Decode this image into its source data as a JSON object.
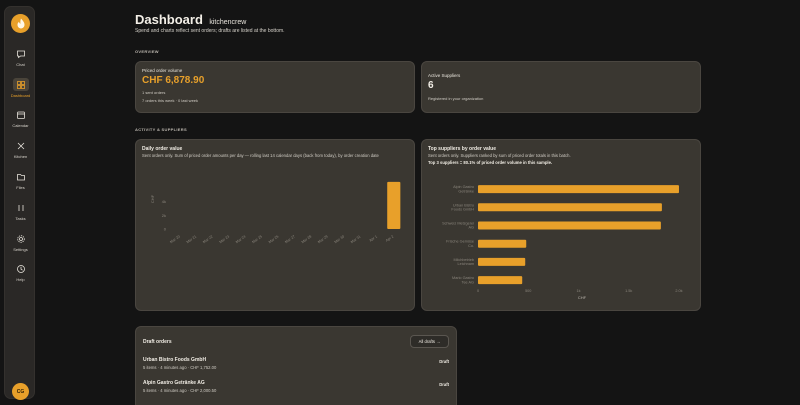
{
  "colors": {
    "accent": "#e8a02a",
    "background": "#141414",
    "card": "#3a3731",
    "sidebar": "#2a2826"
  },
  "sidebar": {
    "items": [
      {
        "label": "Chat",
        "icon": "chat-icon"
      },
      {
        "label": "Dashboard",
        "icon": "dashboard-icon",
        "active": true
      },
      {
        "label": "Calendar",
        "icon": "calendar-icon"
      },
      {
        "label": "Kitchen",
        "icon": "kitchen-icon"
      },
      {
        "label": "Files",
        "icon": "folder-icon"
      },
      {
        "label": "Tasks",
        "icon": "tasks-icon"
      },
      {
        "label": "Settings",
        "icon": "gear-icon"
      },
      {
        "label": "Help",
        "icon": "help-icon"
      }
    ],
    "avatar": "CG"
  },
  "header": {
    "title": "Dashboard",
    "org": "kitchencrew",
    "subtitle": "Spend and charts reflect sent orders; drafts are listed at the bottom."
  },
  "sections": {
    "overview": "OVERVIEW",
    "activity": "ACTIVITY & SUPPLIERS"
  },
  "kpis": {
    "priced": {
      "label": "Priced order volume",
      "value": "CHF 6,878.90",
      "note1": "1 sent orders",
      "note2": "7 orders this week · 0 last week"
    },
    "suppliers": {
      "label": "Active Suppliers",
      "value": "6",
      "note": "Registered in your organization"
    }
  },
  "daily_chart": {
    "title": "Daily order value",
    "description": "Sent orders only. Sum of priced order amounts per day — rolling last 14 calendar days (back from today), by order creation date",
    "ylabel": "CHF",
    "chart_data": {
      "type": "bar",
      "categories": [
        "Mar 20",
        "Mar 21",
        "Mar 22",
        "Mar 23",
        "Mar 24",
        "Mar 25",
        "Mar 26",
        "Mar 27",
        "Mar 28",
        "Mar 29",
        "Mar 30",
        "Mar 31",
        "Apr 1",
        "Apr 2"
      ],
      "values": [
        0,
        0,
        0,
        0,
        0,
        0,
        0,
        0,
        0,
        0,
        0,
        0,
        0,
        6878.9
      ],
      "yticks": [
        "4k",
        "2k",
        "0"
      ]
    }
  },
  "suppliers_chart": {
    "title": "Top suppliers by order value",
    "description": "Sent orders only. Suppliers ranked by sum of priced order totals in this batch.",
    "summary": "Top 3 suppliers = 80.1% of priced order volume in this sample.",
    "xlabel": "CHF",
    "chart_data": {
      "type": "bar",
      "orientation": "horizontal",
      "categories": [
        "Alpin Gastro Getränke",
        "Urban Bistro Foods GmbH",
        "Schweiz Metzgerei AG",
        "Frische Gemüse Co.",
        "Milchbetrieb Leichnam",
        "Mario Gastro Tee AG"
      ],
      "values": [
        2000,
        1830,
        1820,
        480,
        470,
        440
      ],
      "xticks": [
        "0",
        "500",
        "1k",
        "1.5k",
        "2.0k"
      ],
      "xlim": [
        0,
        2050
      ]
    }
  },
  "drafts": {
    "title": "Draft orders",
    "all_button": "All drafts →",
    "rows": [
      {
        "name": "Urban Bistro Foods GmbH",
        "meta": "5 items · 4 minutes ago · CHF 1,752.00",
        "status": "Draft"
      },
      {
        "name": "Alpin Gastro Getränke AG",
        "meta": "5 items · 4 minutes ago · CHF 2,000.50",
        "status": "Draft"
      }
    ]
  }
}
